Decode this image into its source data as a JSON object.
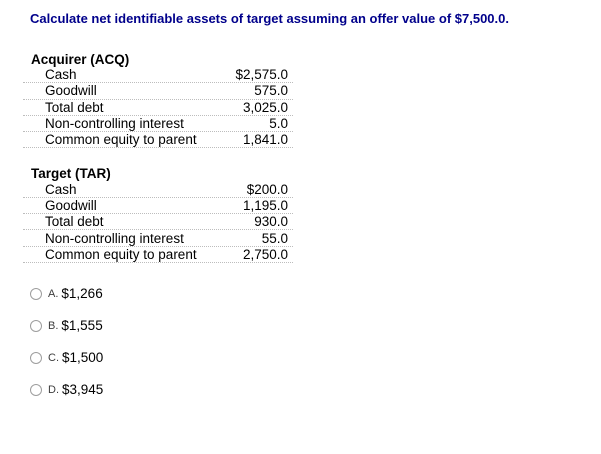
{
  "question": {
    "text": "Calculate net identifiable assets of target assuming an offer value of $7,500.0."
  },
  "sections": [
    {
      "header": "Acquirer (ACQ)",
      "rows": [
        {
          "label": "Cash",
          "value": "$2,575.0"
        },
        {
          "label": "Goodwill",
          "value": "575.0"
        },
        {
          "label": "Total debt",
          "value": "3,025.0"
        },
        {
          "label": "Non-controlling interest",
          "value": "5.0"
        },
        {
          "label": "Common equity to parent",
          "value": "1,841.0"
        }
      ]
    },
    {
      "header": "Target (TAR)",
      "rows": [
        {
          "label": "Cash",
          "value": "$200.0"
        },
        {
          "label": "Goodwill",
          "value": "1,195.0"
        },
        {
          "label": "Total debt",
          "value": "930.0"
        },
        {
          "label": "Non-controlling interest",
          "value": "55.0"
        },
        {
          "label": "Common equity to parent",
          "value": "2,750.0"
        }
      ]
    }
  ],
  "options": [
    {
      "letter": "A.",
      "value": "$1,266",
      "selected": false
    },
    {
      "letter": "B.",
      "value": "$1,555",
      "selected": false
    },
    {
      "letter": "C.",
      "value": "$1,500",
      "selected": false
    },
    {
      "letter": "D.",
      "value": "$3,945",
      "selected": false
    }
  ],
  "colors": {
    "question_text": "#00008B",
    "row_divider": "#bdbdbd",
    "radio_border": "#9e9e9e"
  }
}
